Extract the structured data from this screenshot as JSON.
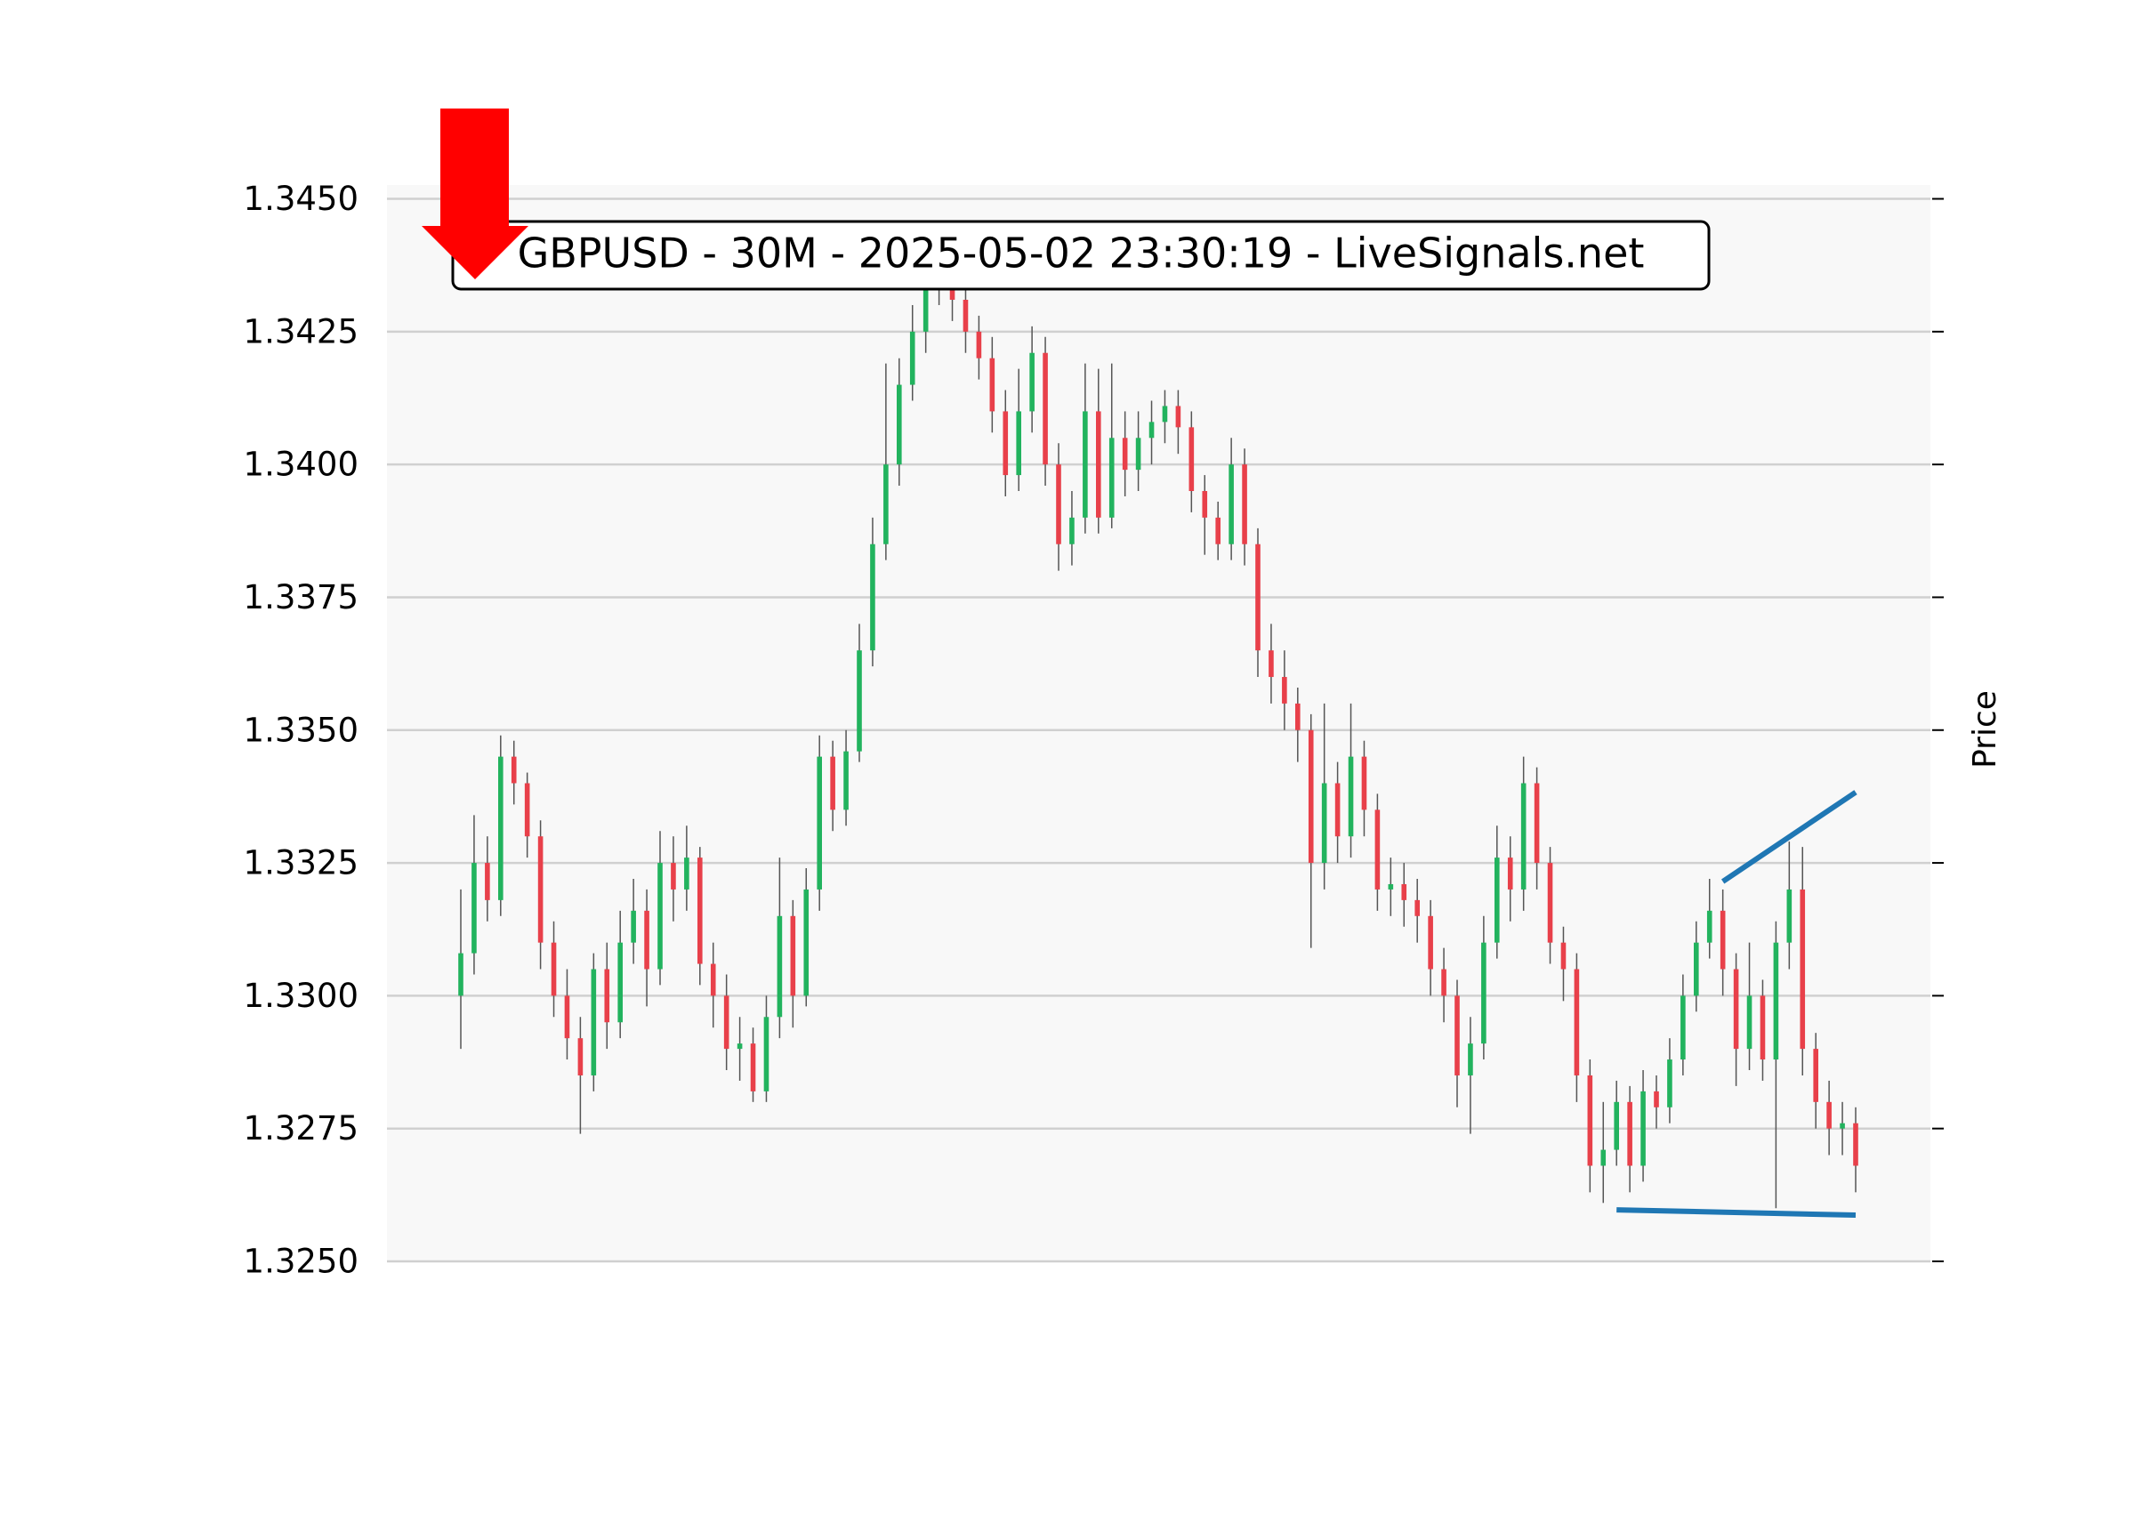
{
  "chart_data": {
    "type": "candlestick",
    "title": "GBPUSD - 30M - 2025-05-02 23:30:19 - LiveSignals.net",
    "y_label": "Price",
    "up_color": "#22b35e",
    "down_color": "#e8404a",
    "wick_color": "#555555",
    "grid": true,
    "ylim": [
      1.325,
      1.34526
    ],
    "yticks": [
      {
        "value": 1.325,
        "label": "1.3250"
      },
      {
        "value": 1.3275,
        "label": "1.3275"
      },
      {
        "value": 1.33,
        "label": "1.3300"
      },
      {
        "value": 1.3325,
        "label": "1.3325"
      },
      {
        "value": 1.335,
        "label": "1.3350"
      },
      {
        "value": 1.3375,
        "label": "1.3375"
      },
      {
        "value": 1.34,
        "label": "1.3400"
      },
      {
        "value": 1.3425,
        "label": "1.3425"
      },
      {
        "value": 1.345,
        "label": "1.3450"
      }
    ],
    "open": [
      1.33,
      1.3308,
      1.3325,
      1.3318,
      1.3345,
      1.334,
      1.333,
      1.331,
      1.33,
      1.3292,
      1.3285,
      1.3305,
      1.3295,
      1.331,
      1.3316,
      1.3305,
      1.3325,
      1.332,
      1.3326,
      1.3306,
      1.33,
      1.329,
      1.3291,
      1.3282,
      1.3296,
      1.3315,
      1.33,
      1.332,
      1.3345,
      1.3335,
      1.3346,
      1.3365,
      1.3385,
      1.34,
      1.3415,
      1.3425,
      1.3435,
      1.3434,
      1.3431,
      1.3425,
      1.342,
      1.341,
      1.3398,
      1.341,
      1.3421,
      1.34,
      1.3385,
      1.339,
      1.341,
      1.339,
      1.3405,
      1.3399,
      1.3405,
      1.3408,
      1.3411,
      1.3407,
      1.3395,
      1.339,
      1.3385,
      1.34,
      1.3385,
      1.3365,
      1.336,
      1.3355,
      1.335,
      1.3325,
      1.334,
      1.333,
      1.3345,
      1.3335,
      1.332,
      1.3321,
      1.3318,
      1.3315,
      1.3305,
      1.33,
      1.3285,
      1.3291,
      1.331,
      1.3326,
      1.332,
      1.334,
      1.3325,
      1.331,
      1.3305,
      1.3285,
      1.3268,
      1.3271,
      1.328,
      1.3268,
      1.3282,
      1.3279,
      1.3288,
      1.33,
      1.331,
      1.3316,
      1.3305,
      1.329,
      1.33,
      1.3288,
      1.331,
      1.332,
      1.329,
      1.328,
      1.3275,
      1.3276
    ],
    "high": [
      1.332,
      1.3334,
      1.333,
      1.3349,
      1.3348,
      1.3342,
      1.3333,
      1.3314,
      1.3305,
      1.3296,
      1.3308,
      1.331,
      1.3316,
      1.3322,
      1.332,
      1.3331,
      1.333,
      1.3332,
      1.3328,
      1.331,
      1.3304,
      1.3296,
      1.3294,
      1.33,
      1.3326,
      1.3318,
      1.3324,
      1.3349,
      1.3348,
      1.335,
      1.337,
      1.339,
      1.3419,
      1.342,
      1.343,
      1.3442,
      1.344,
      1.3438,
      1.3436,
      1.3428,
      1.3424,
      1.3414,
      1.3418,
      1.3426,
      1.3424,
      1.3404,
      1.3395,
      1.3419,
      1.3418,
      1.3419,
      1.341,
      1.341,
      1.3412,
      1.3414,
      1.3414,
      1.341,
      1.3398,
      1.3393,
      1.3405,
      1.3403,
      1.3388,
      1.337,
      1.3365,
      1.3358,
      1.3353,
      1.3355,
      1.3344,
      1.3355,
      1.3348,
      1.3338,
      1.3326,
      1.3325,
      1.3322,
      1.3318,
      1.3309,
      1.3303,
      1.3296,
      1.3315,
      1.3332,
      1.333,
      1.3345,
      1.3343,
      1.3328,
      1.3313,
      1.3308,
      1.3288,
      1.328,
      1.3284,
      1.3283,
      1.3286,
      1.3285,
      1.3292,
      1.3304,
      1.3314,
      1.3322,
      1.332,
      1.3308,
      1.331,
      1.3303,
      1.3314,
      1.3329,
      1.3328,
      1.3293,
      1.3284,
      1.328,
      1.3279
    ],
    "low": [
      1.329,
      1.3304,
      1.3314,
      1.3315,
      1.3336,
      1.3326,
      1.3305,
      1.3296,
      1.3288,
      1.3274,
      1.3282,
      1.329,
      1.3292,
      1.3306,
      1.3298,
      1.3302,
      1.3314,
      1.3316,
      1.3302,
      1.3294,
      1.3286,
      1.3284,
      1.328,
      1.328,
      1.3292,
      1.3294,
      1.3298,
      1.3316,
      1.3331,
      1.3332,
      1.3344,
      1.3362,
      1.3382,
      1.3396,
      1.3412,
      1.3421,
      1.343,
      1.3427,
      1.3421,
      1.3416,
      1.3406,
      1.3394,
      1.3395,
      1.3406,
      1.3396,
      1.338,
      1.3381,
      1.3387,
      1.3387,
      1.3388,
      1.3394,
      1.3395,
      1.34,
      1.3404,
      1.3402,
      1.3391,
      1.3383,
      1.3382,
      1.3382,
      1.3381,
      1.336,
      1.3355,
      1.335,
      1.3344,
      1.3309,
      1.332,
      1.3325,
      1.3326,
      1.333,
      1.3316,
      1.3315,
      1.3313,
      1.331,
      1.33,
      1.3295,
      1.3279,
      1.3274,
      1.3288,
      1.3307,
      1.3314,
      1.3316,
      1.332,
      1.3306,
      1.3299,
      1.328,
      1.3263,
      1.3261,
      1.3268,
      1.3263,
      1.3265,
      1.3275,
      1.3276,
      1.3285,
      1.3297,
      1.3307,
      1.33,
      1.3283,
      1.3286,
      1.3284,
      1.326,
      1.3305,
      1.3285,
      1.3275,
      1.327,
      1.327,
      1.3263
    ],
    "close": [
      1.3308,
      1.3325,
      1.3318,
      1.3345,
      1.334,
      1.333,
      1.331,
      1.33,
      1.3292,
      1.3285,
      1.3305,
      1.3295,
      1.331,
      1.3316,
      1.3305,
      1.3325,
      1.332,
      1.3326,
      1.3306,
      1.33,
      1.329,
      1.3291,
      1.3282,
      1.3296,
      1.3315,
      1.33,
      1.332,
      1.3345,
      1.3335,
      1.3346,
      1.3365,
      1.3385,
      1.34,
      1.3415,
      1.3425,
      1.3435,
      1.3434,
      1.3431,
      1.3425,
      1.342,
      1.341,
      1.3398,
      1.341,
      1.3421,
      1.34,
      1.3385,
      1.339,
      1.341,
      1.339,
      1.3405,
      1.3399,
      1.3405,
      1.3408,
      1.3411,
      1.3407,
      1.3395,
      1.339,
      1.3385,
      1.34,
      1.3385,
      1.3365,
      1.336,
      1.3355,
      1.335,
      1.3325,
      1.334,
      1.333,
      1.3345,
      1.3335,
      1.332,
      1.3321,
      1.3318,
      1.3315,
      1.3305,
      1.33,
      1.3285,
      1.3291,
      1.331,
      1.3326,
      1.332,
      1.334,
      1.3325,
      1.331,
      1.3305,
      1.3285,
      1.3268,
      1.3271,
      1.328,
      1.3268,
      1.3282,
      1.3279,
      1.3288,
      1.33,
      1.331,
      1.3316,
      1.3305,
      1.329,
      1.33,
      1.3288,
      1.331,
      1.332,
      1.329,
      1.328,
      1.3275,
      1.3276,
      1.3268
    ],
    "trend_lines": [
      {
        "color": "#1f77b4",
        "x": [
          95,
          105
        ],
        "y": [
          1.33215,
          1.33383
        ]
      },
      {
        "color": "#1f77b4",
        "x": [
          87,
          105
        ],
        "y": [
          1.32597,
          1.32587
        ]
      }
    ]
  }
}
